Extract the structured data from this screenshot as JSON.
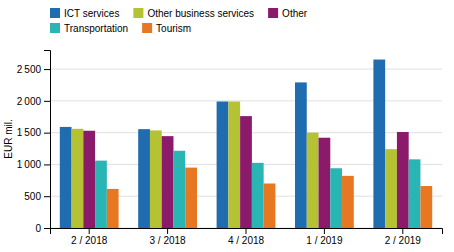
{
  "chart_data": {
    "type": "bar",
    "categories": [
      "2 / 2018",
      "3 / 2018",
      "4 / 2018",
      "1 / 2019",
      "2 / 2019"
    ],
    "series": [
      {
        "name": "ICT services",
        "color": "#1f6cb0",
        "values": [
          1590,
          1555,
          1990,
          2290,
          2650
        ]
      },
      {
        "name": "Other business services",
        "color": "#b5c234",
        "values": [
          1560,
          1535,
          1990,
          1500,
          1240
        ]
      },
      {
        "name": "Other",
        "color": "#8b1a6b",
        "values": [
          1530,
          1445,
          1760,
          1420,
          1510
        ]
      },
      {
        "name": "Transportation",
        "color": "#2ab5b5",
        "values": [
          1060,
          1215,
          1025,
          940,
          1080
        ]
      },
      {
        "name": "Tourism",
        "color": "#e87722",
        "values": [
          615,
          950,
          700,
          820,
          660
        ]
      }
    ],
    "ylabel": "EUR mil.",
    "ylim": [
      0,
      2800
    ],
    "yticks": [
      0,
      500,
      {
        "value": 1000,
        "label": "1 000"
      },
      {
        "value": 1500,
        "label": "1 500"
      },
      {
        "value": 2000,
        "label": "2 000"
      },
      {
        "value": 2500,
        "label": "2 500"
      }
    ],
    "grid": true,
    "legend": "top-left"
  }
}
